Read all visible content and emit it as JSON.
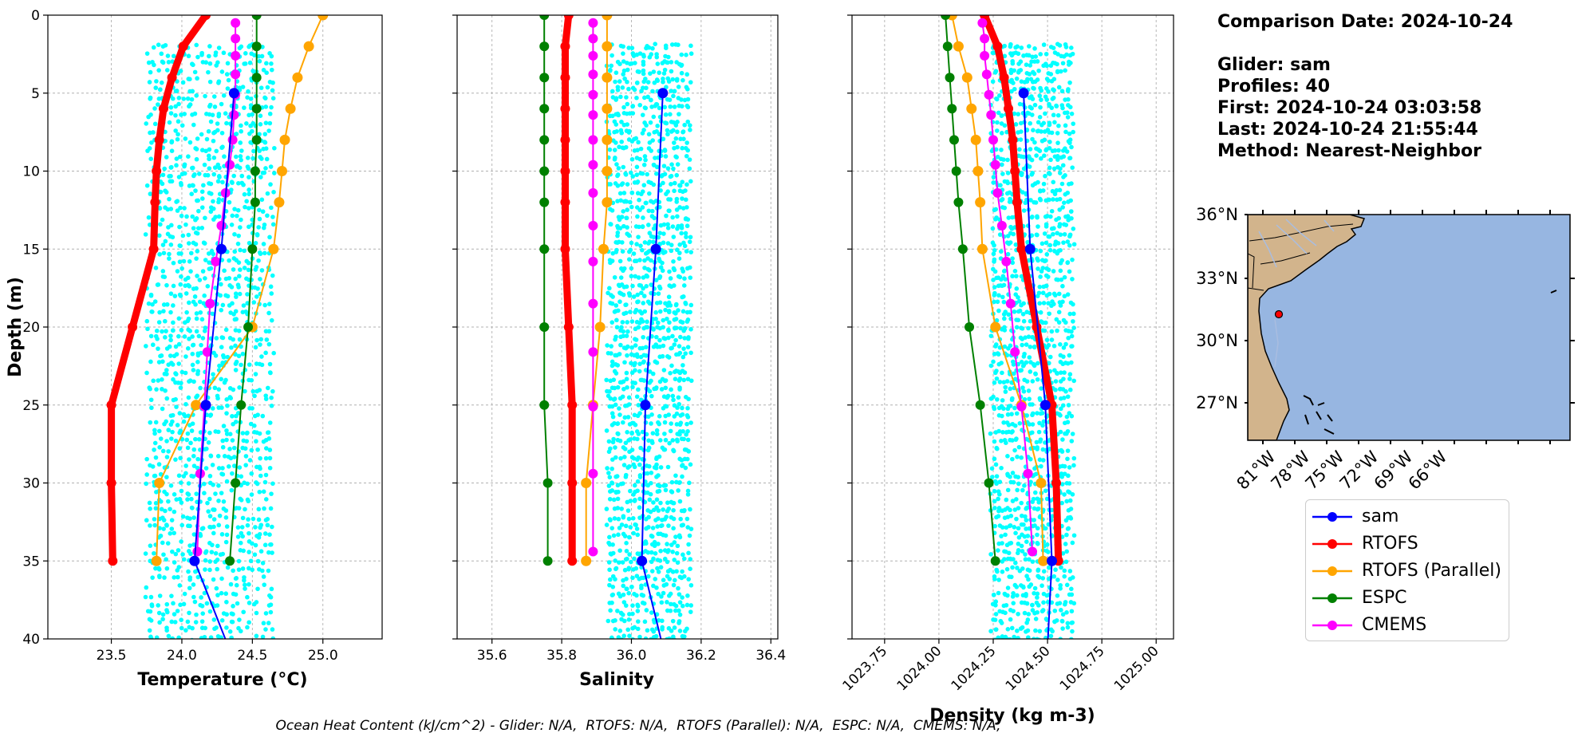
{
  "info": {
    "comparison_date": "Comparison Date: 2024-10-24",
    "glider": "Glider: sam",
    "profiles": "Profiles: 40",
    "first": "First: 2024-10-24 03:03:58",
    "last": "Last: 2024-10-24 21:55:44",
    "method": "Method: Nearest-Neighbor"
  },
  "footer": "Ocean Heat Content (kJ/cm^2) - Glider: N/A,  RTOFS: N/A,  RTOFS (Parallel): N/A,  ESPC: N/A,  CMEMS: N/A,",
  "legend": [
    {
      "name": "sam",
      "color": "#0000ff"
    },
    {
      "name": "RTOFS",
      "color": "#ff0000"
    },
    {
      "name": "RTOFS (Parallel)",
      "color": "#ffa500"
    },
    {
      "name": "ESPC",
      "color": "#008000"
    },
    {
      "name": "CMEMS",
      "color": "#ff00ff"
    }
  ],
  "colors": {
    "glider_scatter": "#00ffff",
    "grid": "#b0b0b0",
    "land": "#d2b48c",
    "ocean": "#97b6e1"
  },
  "map": {
    "lat_ticks": [
      "36°N",
      "33°N",
      "30°N",
      "27°N"
    ],
    "lon_ticks": [
      "81°W",
      "78°W",
      "75°W",
      "72°W",
      "69°W",
      "66°W"
    ],
    "glider_location": {
      "lon": -80.6,
      "lat": 31.3
    }
  },
  "chart_data": [
    {
      "type": "line",
      "xlabel": "Temperature (°C)",
      "ylabel": "Depth (m)",
      "xlim": [
        23.05,
        25.42
      ],
      "ylim": [
        40,
        0
      ],
      "xticks": [
        "23.5",
        "24.0",
        "24.5",
        "25.0"
      ],
      "yticks": [
        "0",
        "5",
        "10",
        "15",
        "20",
        "25",
        "30",
        "35",
        "40"
      ],
      "scatter": {
        "name": "sam profiles",
        "x_range": [
          23.75,
          24.65
        ],
        "depth_range": [
          2,
          40
        ]
      },
      "series": [
        {
          "name": "sam",
          "depth": [
            5,
            15,
            25,
            35,
            40.5
          ],
          "values": [
            24.37,
            24.28,
            24.17,
            24.09,
            24.33
          ]
        },
        {
          "name": "RTOFS",
          "depth": [
            0,
            2,
            4,
            6,
            8,
            10,
            12,
            15,
            20,
            25,
            30,
            35
          ],
          "values": [
            24.17,
            24.01,
            23.93,
            23.87,
            23.84,
            23.82,
            23.81,
            23.8,
            23.65,
            23.5,
            23.5,
            23.51
          ]
        },
        {
          "name": "RTOFS (Parallel)",
          "depth": [
            0,
            2,
            4,
            6,
            8,
            10,
            12,
            15,
            20,
            25,
            30,
            35
          ],
          "values": [
            25.0,
            24.9,
            24.82,
            24.77,
            24.73,
            24.71,
            24.69,
            24.65,
            24.5,
            24.1,
            23.84,
            23.82
          ]
        },
        {
          "name": "ESPC",
          "depth": [
            0,
            2,
            4,
            6,
            8,
            10,
            12,
            15,
            20,
            25,
            30,
            35
          ],
          "values": [
            24.53,
            24.53,
            24.53,
            24.53,
            24.53,
            24.52,
            24.52,
            24.5,
            24.47,
            24.42,
            24.38,
            24.34
          ]
        },
        {
          "name": "CMEMS",
          "depth": [
            0.5,
            1.5,
            2.6,
            3.8,
            5.1,
            6.4,
            8.0,
            9.6,
            11.4,
            13.5,
            15.8,
            18.5,
            21.6,
            25.1,
            29.4,
            34.4
          ],
          "values": [
            24.38,
            24.38,
            24.38,
            24.38,
            24.38,
            24.37,
            24.36,
            24.34,
            24.31,
            24.28,
            24.24,
            24.2,
            24.18,
            24.16,
            24.13,
            24.11
          ]
        }
      ]
    },
    {
      "type": "line",
      "xlabel": "Salinity",
      "ylabel": "",
      "xlim": [
        35.5,
        36.42
      ],
      "ylim": [
        40,
        0
      ],
      "xticks": [
        "35.6",
        "35.8",
        "36.0",
        "36.2",
        "36.4"
      ],
      "scatter": {
        "name": "sam profiles",
        "x_range": [
          35.93,
          36.17
        ],
        "depth_range": [
          2,
          40
        ]
      },
      "series": [
        {
          "name": "sam",
          "depth": [
            5,
            15,
            25,
            35,
            40.5
          ],
          "values": [
            36.09,
            36.07,
            36.04,
            36.03,
            36.09
          ]
        },
        {
          "name": "RTOFS",
          "depth": [
            0,
            2,
            4,
            6,
            8,
            10,
            12,
            15,
            20,
            25,
            30,
            35
          ],
          "values": [
            35.82,
            35.81,
            35.81,
            35.81,
            35.81,
            35.81,
            35.81,
            35.81,
            35.82,
            35.83,
            35.83,
            35.83
          ]
        },
        {
          "name": "RTOFS (Parallel)",
          "depth": [
            0,
            2,
            4,
            6,
            8,
            10,
            12,
            15,
            20,
            25,
            30,
            35
          ],
          "values": [
            35.93,
            35.93,
            35.93,
            35.93,
            35.93,
            35.93,
            35.93,
            35.92,
            35.91,
            35.89,
            35.87,
            35.87
          ]
        },
        {
          "name": "ESPC",
          "depth": [
            0,
            2,
            4,
            6,
            8,
            10,
            12,
            15,
            20,
            25,
            30,
            35
          ],
          "values": [
            35.75,
            35.75,
            35.75,
            35.75,
            35.75,
            35.75,
            35.75,
            35.75,
            35.75,
            35.75,
            35.76,
            35.76
          ]
        },
        {
          "name": "CMEMS",
          "depth": [
            0.5,
            1.5,
            2.6,
            3.8,
            5.1,
            6.4,
            8.0,
            9.6,
            11.4,
            13.5,
            15.8,
            18.5,
            21.6,
            25.1,
            29.4,
            34.4
          ],
          "values": [
            35.89,
            35.89,
            35.89,
            35.89,
            35.89,
            35.89,
            35.89,
            35.89,
            35.89,
            35.89,
            35.89,
            35.89,
            35.89,
            35.89,
            35.89,
            35.89
          ]
        }
      ]
    },
    {
      "type": "line",
      "xlabel": "Density (kg m-3)",
      "ylabel": "",
      "xlim": [
        1023.6,
        1025.08
      ],
      "ylim": [
        40,
        0
      ],
      "xticks": [
        "1023.75",
        "1024.00",
        "1024.25",
        "1024.50",
        "1024.75",
        "1025.00"
      ],
      "scatter": {
        "name": "sam profiles",
        "x_range": [
          1024.24,
          1024.62
        ],
        "depth_range": [
          2,
          40
        ]
      },
      "series": [
        {
          "name": "sam",
          "depth": [
            5,
            15,
            25,
            35,
            40.5
          ],
          "values": [
            1024.39,
            1024.42,
            1024.49,
            1024.52,
            1024.5
          ]
        },
        {
          "name": "RTOFS",
          "depth": [
            0,
            2,
            4,
            6,
            8,
            10,
            12,
            15,
            20,
            25,
            30,
            35
          ],
          "values": [
            1024.21,
            1024.27,
            1024.3,
            1024.32,
            1024.34,
            1024.35,
            1024.36,
            1024.38,
            1024.45,
            1024.52,
            1024.54,
            1024.55
          ]
        },
        {
          "name": "RTOFS (Parallel)",
          "depth": [
            0,
            2,
            4,
            6,
            8,
            10,
            12,
            15,
            20,
            25,
            30,
            35
          ],
          "values": [
            1024.06,
            1024.09,
            1024.13,
            1024.15,
            1024.17,
            1024.18,
            1024.19,
            1024.2,
            1024.26,
            1024.38,
            1024.47,
            1024.48
          ]
        },
        {
          "name": "ESPC",
          "depth": [
            0,
            2,
            4,
            6,
            8,
            10,
            12,
            15,
            20,
            25,
            30,
            35
          ],
          "values": [
            1024.03,
            1024.04,
            1024.05,
            1024.06,
            1024.07,
            1024.08,
            1024.09,
            1024.11,
            1024.14,
            1024.19,
            1024.23,
            1024.26
          ]
        },
        {
          "name": "CMEMS",
          "depth": [
            0.5,
            1.5,
            2.6,
            3.8,
            5.1,
            6.4,
            8.0,
            9.6,
            11.4,
            13.5,
            15.8,
            18.5,
            21.6,
            25.1,
            29.4,
            34.4
          ],
          "values": [
            1024.2,
            1024.21,
            1024.21,
            1024.22,
            1024.23,
            1024.24,
            1024.25,
            1024.26,
            1024.27,
            1024.29,
            1024.31,
            1024.33,
            1024.35,
            1024.38,
            1024.41,
            1024.43
          ]
        }
      ]
    }
  ]
}
